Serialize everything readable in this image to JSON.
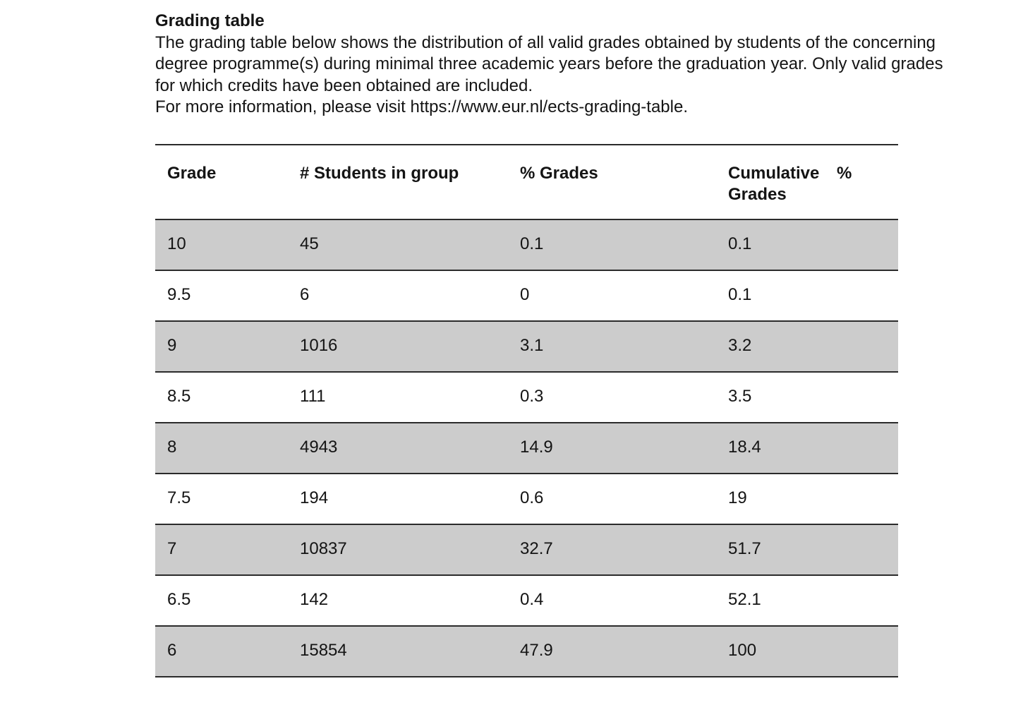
{
  "document": {
    "title": "Grading table",
    "paragraph": "The grading table below shows the distribution of all valid grades obtained by students of the concerning degree programme(s) during minimal three academic years before the graduation year. Only valid grades for which credits have been obtained are included.",
    "info_line": "For more information, please visit https://www.eur.nl/ects-grading-table."
  },
  "table": {
    "headers": {
      "grade": "Grade",
      "students": "# Students in group",
      "pct_grades": "% Grades",
      "cumulative_line1": "Cumulative %",
      "cumulative_line2": "Grades"
    },
    "rows": [
      {
        "grade": "10",
        "students": "45",
        "pct_grades": "0.1",
        "cumulative_pct": "0.1"
      },
      {
        "grade": "9.5",
        "students": "6",
        "pct_grades": "0",
        "cumulative_pct": "0.1"
      },
      {
        "grade": "9",
        "students": "1016",
        "pct_grades": "3.1",
        "cumulative_pct": "3.2"
      },
      {
        "grade": "8.5",
        "students": "111",
        "pct_grades": "0.3",
        "cumulative_pct": "3.5"
      },
      {
        "grade": "8",
        "students": "4943",
        "pct_grades": "14.9",
        "cumulative_pct": "18.4"
      },
      {
        "grade": "7.5",
        "students": "194",
        "pct_grades": "0.6",
        "cumulative_pct": "19"
      },
      {
        "grade": "7",
        "students": "10837",
        "pct_grades": "32.7",
        "cumulative_pct": "51.7"
      },
      {
        "grade": "6.5",
        "students": "142",
        "pct_grades": "0.4",
        "cumulative_pct": "52.1"
      },
      {
        "grade": "6",
        "students": "15854",
        "pct_grades": "47.9",
        "cumulative_pct": "100"
      }
    ],
    "colors": {
      "row_shade": "#cccccc",
      "rule": "#2b2b2b",
      "text": "#141414"
    }
  }
}
